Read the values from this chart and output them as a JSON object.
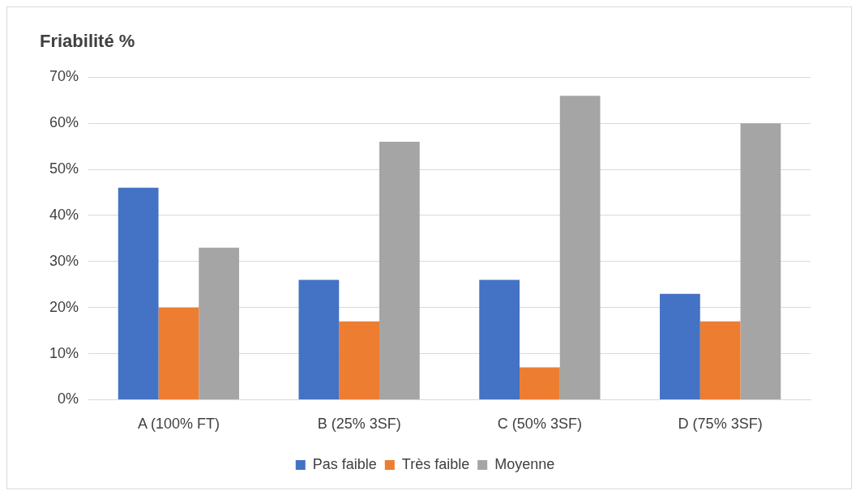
{
  "chart_data": {
    "type": "bar",
    "title": "Friabilité %",
    "categories": [
      "A (100% FT)",
      "B (25% 3SF)",
      "C (50% 3SF)",
      "D (75% 3SF)"
    ],
    "series": [
      {
        "name": "Pas faible",
        "color": "#4472c4",
        "values": [
          46,
          26,
          26,
          23
        ]
      },
      {
        "name": "Très faible",
        "color": "#ed7d31",
        "values": [
          20,
          17,
          7,
          17
        ]
      },
      {
        "name": "Moyenne",
        "color": "#a5a5a5",
        "values": [
          33,
          56,
          66,
          60
        ]
      }
    ],
    "ylim": [
      0,
      70
    ],
    "yticks": [
      {
        "value": 0,
        "label": "0%"
      },
      {
        "value": 10,
        "label": "10%"
      },
      {
        "value": 20,
        "label": "20%"
      },
      {
        "value": 30,
        "label": "30%"
      },
      {
        "value": 40,
        "label": "40%"
      },
      {
        "value": 50,
        "label": "50%"
      },
      {
        "value": 60,
        "label": "60%"
      },
      {
        "value": 70,
        "label": "70%"
      }
    ],
    "grid": "y",
    "legend": "bottom"
  }
}
